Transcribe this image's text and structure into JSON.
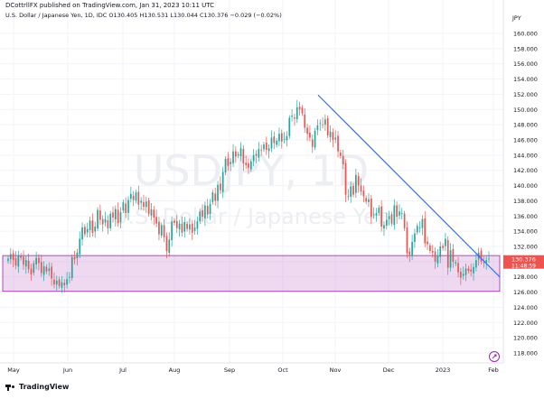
{
  "header": {
    "publisher": "DCottrllFX published on TradingView.com, Jan 31, 2023 10:11 UTC",
    "symbol": "U.S. Dollar / Japanese Yen, 1D, IDC",
    "open": "O130.405",
    "high": "H130.531",
    "low": "L130.044",
    "close": "C130.376",
    "change": "−0.029 (−0.02%)"
  },
  "axis": {
    "currency": "JPY",
    "price_ticks": [
      "160.000",
      "158.000",
      "156.000",
      "154.000",
      "152.000",
      "150.000",
      "148.000",
      "146.000",
      "144.000",
      "142.000",
      "140.000",
      "138.000",
      "136.000",
      "134.000",
      "132.000",
      "130.000",
      "128.000",
      "126.000",
      "124.000",
      "122.000",
      "120.000",
      "118.000"
    ],
    "time_ticks": [
      "May",
      "Jun",
      "Jul",
      "Aug",
      "Sep",
      "Oct",
      "Nov",
      "Dec",
      "2023",
      "Feb"
    ],
    "last_price": "130.376",
    "countdown": "11:48:59"
  },
  "watermark": {
    "symbol": "USDJPY, 1D",
    "description": "U.S. Dollar / Japanese Yen"
  },
  "footer": {
    "brand": "TradingView"
  },
  "colors": {
    "up": "#26a69a",
    "down": "#ef5350",
    "zone_fill": "rgba(206, 147, 216, 0.35)",
    "zone_border": "#9c27b0",
    "trendline": "#2962ff",
    "price_label": "#ef5350",
    "grid": "#f0f3fa"
  },
  "chart_data": {
    "type": "candlestick",
    "symbol": "USDJPY",
    "interval": "1D",
    "ylim": [
      116,
      162
    ],
    "x_labels": [
      "May",
      "Jun",
      "Jul",
      "Aug",
      "Sep",
      "Oct",
      "Nov",
      "Dec",
      "2023",
      "Feb"
    ],
    "annotations": {
      "support_zone": [
        126.1,
        130.8
      ],
      "trendline": [
        {
          "date": "2022-10-21",
          "price": 151.9
        },
        {
          "date": "2023-02-01",
          "price": 128.0
        }
      ]
    },
    "closes": [
      130.4,
      131.0,
      130.2,
      129.5,
      130.8,
      130.5,
      129.6,
      130.2,
      129.0,
      128.3,
      129.8,
      130.5,
      129.8,
      128.5,
      129.4,
      128.7,
      129.1,
      127.8,
      127.0,
      127.5,
      126.8,
      127.3,
      126.9,
      127.7,
      128.0,
      130.6,
      130.3,
      131.2,
      133.0,
      134.5,
      133.6,
      134.3,
      135.4,
      133.8,
      134.6,
      136.8,
      135.5,
      134.9,
      135.6,
      134.4,
      136.3,
      135.8,
      136.9,
      135.1,
      136.5,
      137.8,
      136.4,
      138.1,
      138.9,
      138.1,
      139.1,
      137.5,
      138.0,
      137.2,
      137.9,
      136.3,
      136.9,
      135.8,
      135.0,
      133.6,
      134.8,
      133.2,
      131.4,
      132.9,
      135.3,
      135.1,
      134.4,
      135.0,
      133.8,
      135.2,
      134.3,
      134.9,
      133.8,
      134.5,
      135.3,
      136.6,
      135.9,
      137.4,
      136.2,
      137.6,
      139.1,
      138.0,
      140.1,
      139.4,
      141.8,
      143.5,
      142.6,
      143.1,
      144.5,
      143.8,
      144.1,
      144.9,
      142.9,
      142.7,
      142.3,
      143.2,
      144.0,
      143.9,
      144.8,
      144.7,
      145.4,
      144.7,
      144.9,
      146.3,
      145.6,
      145.9,
      146.8,
      145.8,
      146.1,
      146.5,
      148.9,
      149.2,
      148.8,
      150.3,
      150.0,
      149.5,
      147.6,
      146.8,
      146.3,
      145.1,
      147.2,
      147.9,
      148.2,
      148.0,
      148.7,
      146.6,
      147.1,
      146.0,
      146.3,
      144.5,
      143.9,
      142.8,
      138.8,
      138.6,
      139.9,
      138.8,
      141.4,
      140.0,
      139.2,
      138.6,
      137.9,
      138.2,
      135.9,
      136.2,
      136.4,
      137.1,
      134.6,
      134.8,
      135.5,
      136.0,
      135.0,
      137.4,
      135.9,
      136.6,
      136.4,
      134.4,
      131.1,
      130.9,
      132.6,
      133.7,
      134.7,
      134.5,
      135.6,
      132.4,
      132.3,
      131.4,
      131.2,
      130.0,
      130.7,
      132.0,
      131.8,
      133.0,
      129.2,
      131.5,
      130.0,
      129.9,
      128.6,
      127.9,
      128.4,
      129.1,
      128.8,
      128.7,
      129.3,
      130.2,
      131.2,
      130.0,
      129.9,
      130.2,
      130.4
    ]
  }
}
